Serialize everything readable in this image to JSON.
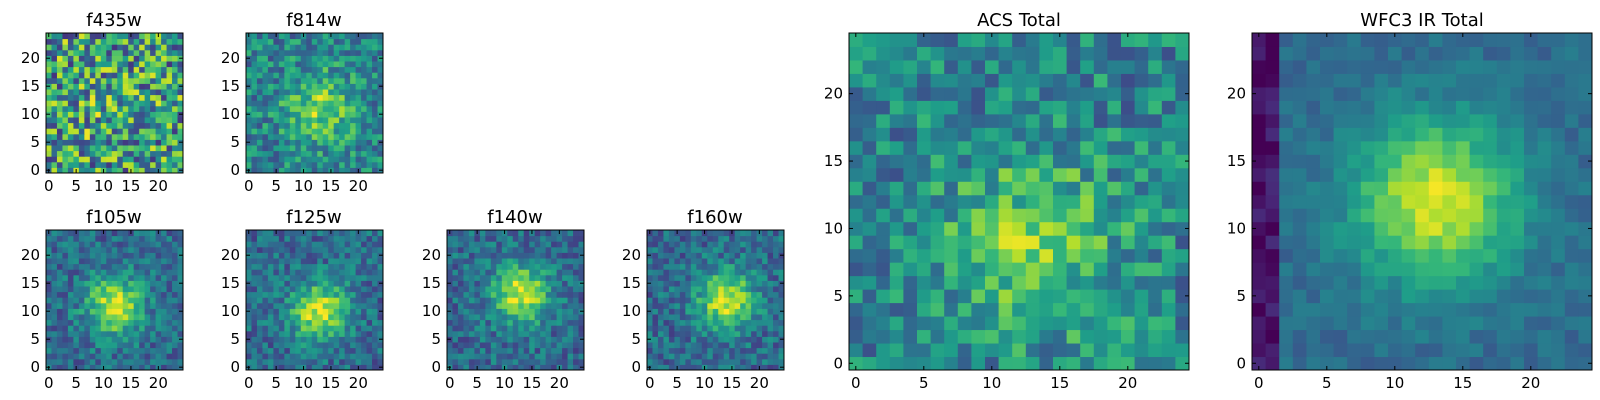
{
  "chart_data": {
    "type": "heatmap",
    "colormap": "viridis",
    "grid": false,
    "panels": [
      {
        "id": "f435w",
        "title": "f435w",
        "size": "small",
        "xticks": [
          0,
          5,
          10,
          15,
          20
        ],
        "yticks": [
          0,
          5,
          10,
          15,
          20
        ],
        "xlim": [
          -0.5,
          24.5
        ],
        "ylim": [
          -0.5,
          24.5
        ],
        "pattern": "noise",
        "peak": [
          12,
          11
        ],
        "seed": 3
      },
      {
        "id": "f814w",
        "title": "f814w",
        "size": "small",
        "xticks": [
          0,
          5,
          10,
          15,
          20
        ],
        "yticks": [
          0,
          5,
          10,
          15,
          20
        ],
        "xlim": [
          -0.5,
          24.5
        ],
        "ylim": [
          -0.5,
          24.5
        ],
        "pattern": "faint-source",
        "peak": [
          13,
          11
        ],
        "seed": 7
      },
      {
        "id": "f105w",
        "title": "f105w",
        "size": "small",
        "xticks": [
          0,
          5,
          10,
          15,
          20
        ],
        "yticks": [
          0,
          5,
          10,
          15,
          20
        ],
        "xlim": [
          -0.5,
          24.5
        ],
        "ylim": [
          -0.5,
          24.5
        ],
        "pattern": "source",
        "peak": [
          12,
          11
        ],
        "seed": 11
      },
      {
        "id": "f125w",
        "title": "f125w",
        "size": "small",
        "xticks": [
          0,
          5,
          10,
          15,
          20
        ],
        "yticks": [
          0,
          5,
          10,
          15,
          20
        ],
        "xlim": [
          -0.5,
          24.5
        ],
        "ylim": [
          -0.5,
          24.5
        ],
        "pattern": "source",
        "peak": [
          13,
          10
        ],
        "seed": 13
      },
      {
        "id": "f140w",
        "title": "f140w",
        "size": "small",
        "xticks": [
          0,
          5,
          10,
          15,
          20
        ],
        "yticks": [
          0,
          5,
          10,
          15,
          20
        ],
        "xlim": [
          -0.5,
          24.5
        ],
        "ylim": [
          -0.5,
          24.5
        ],
        "pattern": "source",
        "peak": [
          13,
          13
        ],
        "seed": 17
      },
      {
        "id": "f160w",
        "title": "f160w",
        "size": "small",
        "xticks": [
          0,
          5,
          10,
          15,
          20
        ],
        "yticks": [
          0,
          5,
          10,
          15,
          20
        ],
        "xlim": [
          -0.5,
          24.5
        ],
        "ylim": [
          -0.5,
          24.5
        ],
        "pattern": "source",
        "peak": [
          14,
          12
        ],
        "seed": 19
      },
      {
        "id": "acs-total",
        "title": "ACS Total",
        "size": "large",
        "xticks": [
          0,
          5,
          10,
          15,
          20
        ],
        "yticks": [
          0,
          5,
          10,
          15,
          20
        ],
        "xlim": [
          -0.5,
          24.5
        ],
        "ylim": [
          -0.5,
          24.5
        ],
        "pattern": "faint-source",
        "peak": [
          13,
          9
        ],
        "seed": 23
      },
      {
        "id": "wfc3-ir-total",
        "title": "WFC3 IR Total",
        "size": "large",
        "xticks": [
          0,
          5,
          10,
          15,
          20
        ],
        "yticks": [
          0,
          5,
          10,
          15,
          20
        ],
        "xlim": [
          -0.5,
          24.5
        ],
        "ylim": [
          -0.5,
          24.5
        ],
        "pattern": "smooth-source",
        "peak": [
          13,
          12
        ],
        "seed": 29
      }
    ]
  }
}
